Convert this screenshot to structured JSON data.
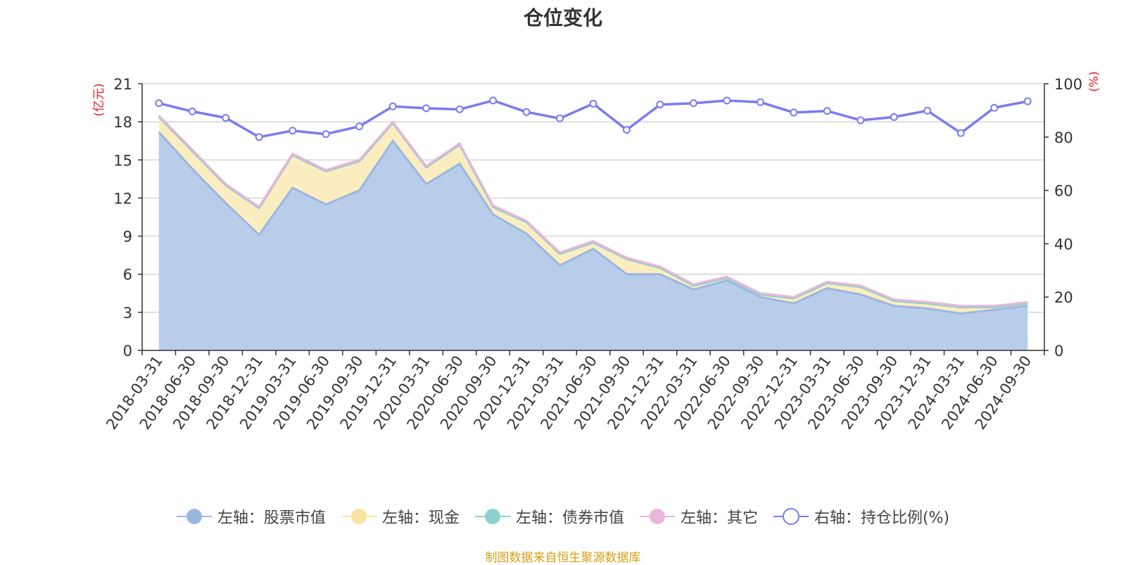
{
  "chart_data": {
    "type": "area",
    "title": "仓位变化",
    "ylabel_left": "(亿元)",
    "ylabel_right": "(%)",
    "ylim_left": [
      0,
      21
    ],
    "ylim_right": [
      0,
      100
    ],
    "yticks_left": [
      0,
      3,
      6,
      9,
      12,
      15,
      18,
      21
    ],
    "yticks_right": [
      0,
      20,
      40,
      60,
      80,
      100
    ],
    "grid": true,
    "legend_position": "bottom",
    "categories": [
      "2018-03-31",
      "2018-06-30",
      "2018-09-30",
      "2018-12-31",
      "2019-03-31",
      "2019-06-30",
      "2019-09-30",
      "2019-12-31",
      "2020-03-31",
      "2020-06-30",
      "2020-09-30",
      "2020-12-31",
      "2021-03-31",
      "2021-06-30",
      "2021-09-30",
      "2021-12-31",
      "2022-03-31",
      "2022-06-30",
      "2022-09-30",
      "2022-12-31",
      "2023-03-31",
      "2023-06-30",
      "2023-09-30",
      "2023-12-31",
      "2024-03-31",
      "2024-06-30",
      "2024-09-30"
    ],
    "series": [
      {
        "name": "左轴：股票市值",
        "axis": "left",
        "stack": true,
        "color": "#9bb7e0",
        "fill": "#b8cdea",
        "values": [
          17.2,
          14.3,
          11.6,
          9.1,
          12.8,
          11.5,
          12.6,
          16.5,
          13.1,
          14.7,
          10.7,
          9.2,
          6.7,
          8.0,
          6.0,
          6.0,
          4.8,
          5.5,
          4.2,
          3.7,
          4.9,
          4.4,
          3.5,
          3.3,
          2.9,
          3.2,
          3.5
        ]
      },
      {
        "name": "左轴：现金",
        "axis": "left",
        "stack": true,
        "color": "#f9e3a1",
        "fill": "#fbedbf",
        "values": [
          1.2,
          1.4,
          1.4,
          2.1,
          2.6,
          2.6,
          2.3,
          1.4,
          1.3,
          1.5,
          0.6,
          0.9,
          0.9,
          0.5,
          1.2,
          0.5,
          0.3,
          0.2,
          0.2,
          0.4,
          0.4,
          0.6,
          0.4,
          0.4,
          0.5,
          0.2,
          0.2
        ]
      },
      {
        "name": "左轴：债券市值",
        "axis": "left",
        "stack": true,
        "color": "#8ecfd0",
        "fill": "#8ecfd0",
        "values": [
          0,
          0,
          0,
          0,
          0,
          0,
          0,
          0,
          0,
          0,
          0,
          0,
          0,
          0,
          0,
          0,
          0,
          0,
          0,
          0,
          0,
          0,
          0,
          0,
          0,
          0,
          0
        ]
      },
      {
        "name": "左轴：其它",
        "axis": "left",
        "stack": true,
        "color": "#e9b6da",
        "fill": "#e9b6da",
        "values": [
          0.1,
          0.1,
          0.1,
          0.1,
          0.1,
          0.1,
          0.1,
          0.1,
          0.1,
          0.1,
          0.1,
          0.1,
          0.1,
          0.1,
          0.1,
          0.1,
          0.1,
          0.1,
          0.1,
          0.1,
          0.1,
          0.1,
          0.1,
          0.1,
          0.1,
          0.1,
          0.1
        ]
      },
      {
        "name": "右轴：持仓比例(%)",
        "axis": "right",
        "stack": false,
        "color": "#7b7bef",
        "values": [
          92.7,
          89.6,
          87.2,
          80.0,
          82.4,
          81.1,
          84.0,
          91.5,
          90.8,
          90.4,
          93.7,
          89.4,
          87.0,
          92.5,
          82.7,
          92.2,
          92.7,
          93.7,
          93.1,
          89.2,
          89.8,
          86.3,
          87.5,
          89.9,
          81.5,
          91.0,
          93.4
        ]
      }
    ]
  },
  "legend": [
    {
      "label": "左轴：股票市值",
      "color": "#9bb7e0",
      "hollow": false
    },
    {
      "label": "左轴：现金",
      "color": "#f9e3a1",
      "hollow": false
    },
    {
      "label": "左轴：债券市值",
      "color": "#8ecfd0",
      "hollow": false
    },
    {
      "label": "左轴：其它",
      "color": "#e9b6da",
      "hollow": false
    },
    {
      "label": "右轴：持仓比例(%)",
      "color": "#7b7bef",
      "hollow": true
    }
  ],
  "source": "制图数据来自恒生聚源数据库"
}
